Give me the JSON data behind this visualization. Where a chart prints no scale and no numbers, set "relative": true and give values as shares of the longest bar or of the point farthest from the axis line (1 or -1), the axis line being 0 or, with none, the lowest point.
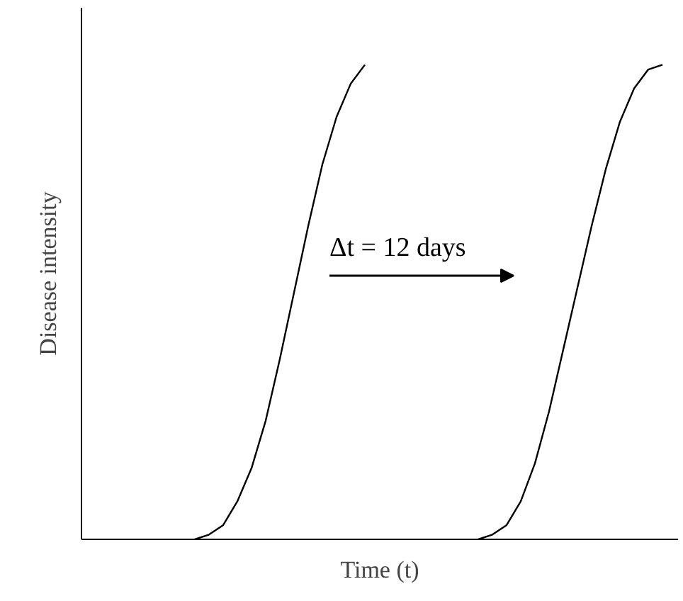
{
  "chart_data": {
    "type": "line",
    "relative": true,
    "xlabel": "Time (t)",
    "ylabel": "Disease intensity",
    "categories": [
      null,
      null,
      null,
      null,
      null,
      null,
      null,
      null,
      null,
      null,
      null,
      null,
      null,
      null,
      null,
      null,
      null,
      null,
      null,
      null,
      null,
      null,
      null,
      null,
      null,
      null,
      null,
      null,
      null,
      null,
      null,
      null,
      null,
      null,
      null,
      null,
      null,
      null,
      null,
      null,
      null,
      null,
      null
    ],
    "series": [
      {
        "color": "#000000",
        "values": [
          null,
          null,
          null,
          null,
          null,
          null,
          null,
          null,
          0,
          0.01,
          0.03,
          0.08,
          0.15,
          0.25,
          0.38,
          0.52,
          0.66,
          0.79,
          0.89,
          0.96,
          1.0,
          null,
          null,
          null,
          null,
          null,
          null,
          null,
          null,
          null,
          null,
          null,
          null,
          null,
          null,
          null,
          null,
          null,
          null,
          null,
          null,
          null,
          null
        ]
      },
      {
        "color": "#000000",
        "values": [
          null,
          null,
          null,
          null,
          null,
          null,
          null,
          null,
          null,
          null,
          null,
          null,
          null,
          null,
          null,
          null,
          null,
          null,
          null,
          null,
          null,
          null,
          null,
          null,
          null,
          null,
          null,
          null,
          0,
          0.01,
          0.03,
          0.08,
          0.16,
          0.27,
          0.4,
          0.53,
          0.66,
          0.78,
          0.88,
          0.95,
          0.99,
          1.0,
          null
        ]
      }
    ],
    "annotations": [
      "Δt = 12 days"
    ],
    "line_style": "solid",
    "marker": "none"
  }
}
